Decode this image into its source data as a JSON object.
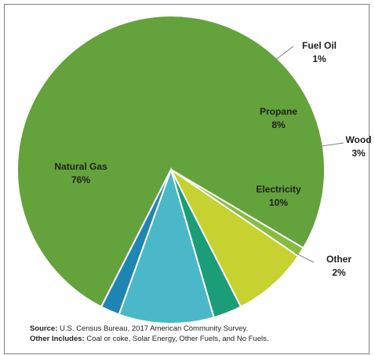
{
  "chart_data": {
    "type": "pie",
    "title": "",
    "slices": [
      {
        "label": "Natural Gas",
        "value": 76,
        "pct_label": "76%",
        "color": "#64a23c"
      },
      {
        "label": "Fuel Oil",
        "value": 1,
        "pct_label": "1%",
        "color": "#86bd3f"
      },
      {
        "label": "Propane",
        "value": 8,
        "pct_label": "8%",
        "color": "#c5d22f"
      },
      {
        "label": "Wood",
        "value": 3,
        "pct_label": "3%",
        "color": "#1b9e77"
      },
      {
        "label": "Electricity",
        "value": 10,
        "pct_label": "10%",
        "color": "#4ab8c8"
      },
      {
        "label": "Other",
        "value": 2,
        "pct_label": "2%",
        "color": "#1f86b4"
      }
    ]
  },
  "footer": {
    "source_label": "Source:",
    "source_text": " U.S. Census Bureau, 2017 American Community Survey.",
    "other_label": "Other Includes:",
    "other_text": " Coal or coke, Solar Energy, Other Fuels, and No Fuels."
  }
}
